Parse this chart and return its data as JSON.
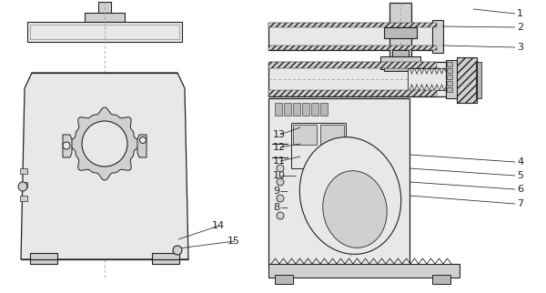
{
  "bg_color": "#ffffff",
  "lc": "#222222",
  "gray1": "#e8e8e8",
  "gray2": "#d0d0d0",
  "gray3": "#b8b8b8",
  "gray4": "#f4f4f4",
  "figsize": [
    6.0,
    3.22
  ],
  "dpi": 100
}
